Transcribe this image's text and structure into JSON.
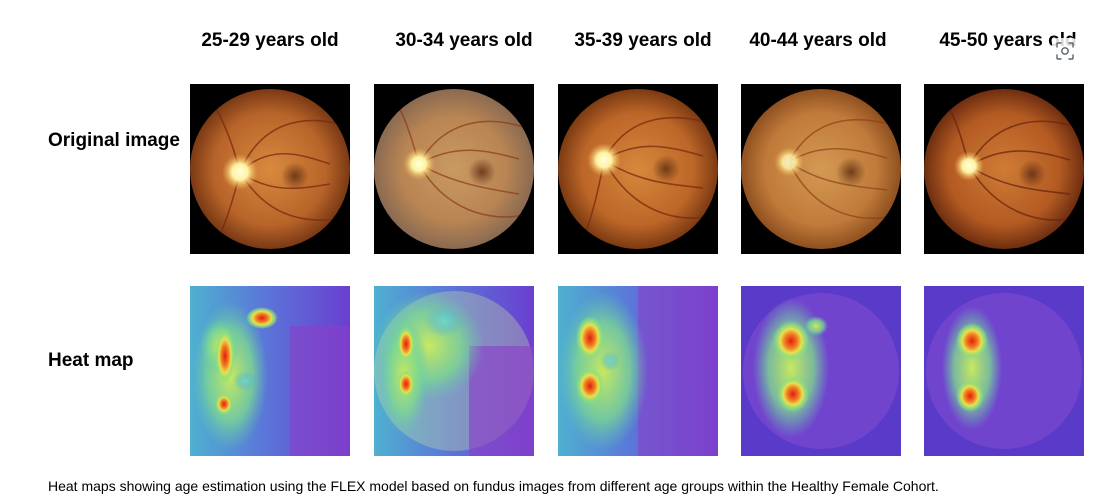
{
  "figure": {
    "age_groups": [
      "25-29 years old",
      "30-34 years old",
      "35-39 years old",
      "40-44 years old",
      "45-50 years old"
    ],
    "row_labels": {
      "original": "Original image",
      "heatmap": "Heat map"
    },
    "caption": "Heat maps showing age estimation using the FLEX model based on fundus images from different age groups within the Healthy Female Cohort."
  },
  "colors": {
    "fundus_orange": "#c8742f",
    "fundus_dark": "#6e3212",
    "optic_disc": "#fff6b0",
    "heat_low": "#6a3fd0",
    "heat_mid": "#8fe07a",
    "heat_high": "#e01e10"
  },
  "icons": {
    "visual_lookup": "lens-scan-icon"
  }
}
